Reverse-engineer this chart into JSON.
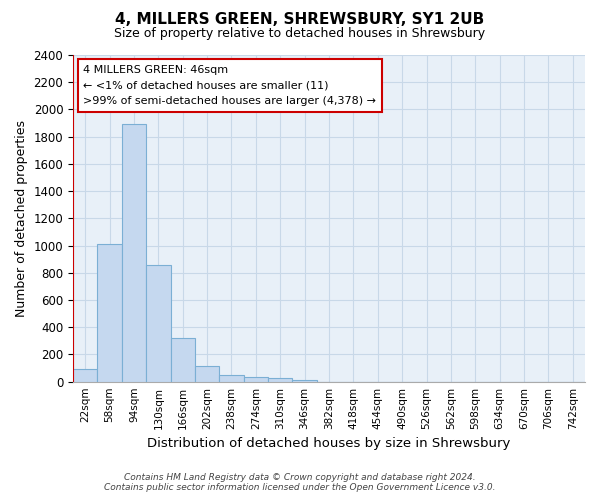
{
  "title": "4, MILLERS GREEN, SHREWSBURY, SY1 2UB",
  "subtitle": "Size of property relative to detached houses in Shrewsbury",
  "xlabel": "Distribution of detached houses by size in Shrewsbury",
  "ylabel": "Number of detached properties",
  "bar_labels": [
    "22sqm",
    "58sqm",
    "94sqm",
    "130sqm",
    "166sqm",
    "202sqm",
    "238sqm",
    "274sqm",
    "310sqm",
    "346sqm",
    "382sqm",
    "418sqm",
    "454sqm",
    "490sqm",
    "526sqm",
    "562sqm",
    "598sqm",
    "634sqm",
    "670sqm",
    "706sqm",
    "742sqm"
  ],
  "bar_values": [
    90,
    1010,
    1890,
    860,
    320,
    115,
    50,
    35,
    25,
    10,
    0,
    0,
    0,
    0,
    0,
    0,
    0,
    0,
    0,
    0,
    0
  ],
  "bar_color": "#c5d8ef",
  "bar_edge_color": "#7bafd4",
  "highlight_line_color": "#cc0000",
  "ylim": [
    0,
    2400
  ],
  "yticks": [
    0,
    200,
    400,
    600,
    800,
    1000,
    1200,
    1400,
    1600,
    1800,
    2000,
    2200,
    2400
  ],
  "annotation_text": "4 MILLERS GREEN: 46sqm\n← <1% of detached houses are smaller (11)\n>99% of semi-detached houses are larger (4,378) →",
  "annotation_box_color": "#ffffff",
  "annotation_box_edge": "#cc0000",
  "grid_color": "#c8d8e8",
  "background_color": "#e8f0f8",
  "footer_line1": "Contains HM Land Registry data © Crown copyright and database right 2024.",
  "footer_line2": "Contains public sector information licensed under the Open Government Licence v3.0."
}
